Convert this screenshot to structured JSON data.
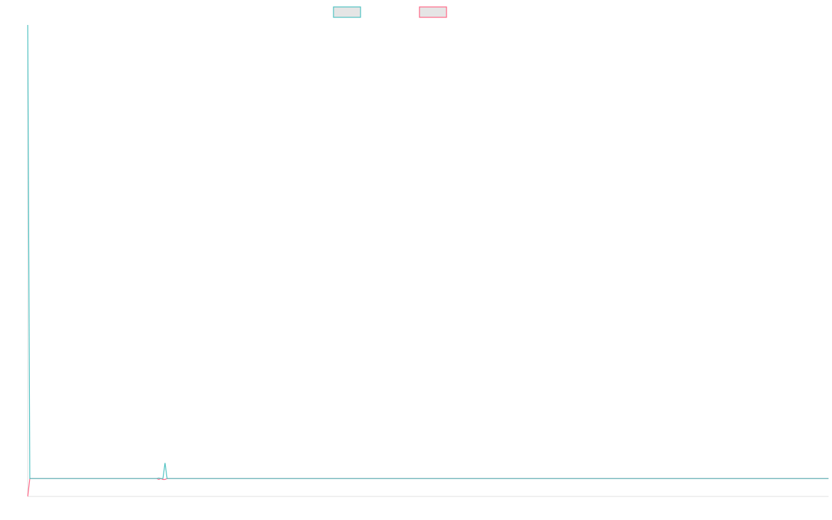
{
  "chart_data": {
    "type": "line",
    "title": "",
    "xlabel": "",
    "ylabel": "",
    "xlim": [
      0,
      385
    ],
    "ylim": [
      0,
      100
    ],
    "grid": false,
    "legend": "top",
    "series": [
      {
        "color": "#4bc0c0",
        "points": [
          [
            0,
            100
          ],
          [
            1,
            3.8
          ],
          [
            62,
            3.8
          ],
          [
            63,
            3.9
          ],
          [
            64,
            3.8
          ],
          [
            65,
            3.8
          ],
          [
            66,
            7.1
          ],
          [
            67,
            3.8
          ],
          [
            385,
            3.8
          ]
        ]
      },
      {
        "color": "#ff6384",
        "points": [
          [
            0,
            0
          ],
          [
            1,
            3.8
          ],
          [
            62,
            3.8
          ],
          [
            63,
            3.6
          ],
          [
            64,
            3.8
          ],
          [
            65,
            3.6
          ],
          [
            66,
            3.6
          ],
          [
            67,
            3.8
          ],
          [
            385,
            3.8
          ]
        ]
      }
    ]
  }
}
